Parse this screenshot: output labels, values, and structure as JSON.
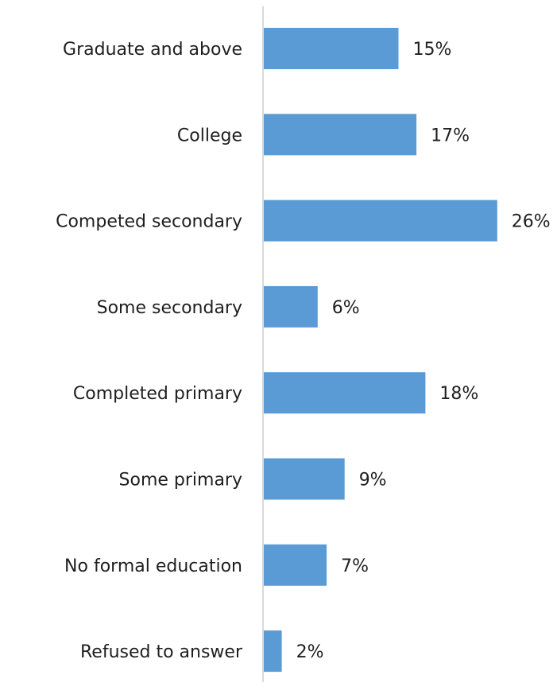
{
  "chart_data": {
    "type": "bar",
    "orientation": "horizontal",
    "title": "",
    "xlabel": "",
    "ylabel": "",
    "categories": [
      "Graduate and above",
      "College",
      "Competed secondary",
      "Some secondary",
      "Completed primary",
      "Some primary",
      "No formal education",
      "Refused to answer"
    ],
    "values": [
      15,
      17,
      26,
      6,
      18,
      9,
      7,
      2
    ],
    "value_labels": [
      "15%",
      "17%",
      "26%",
      "6%",
      "18%",
      "9%",
      "7%",
      "2%"
    ],
    "value_unit": "%",
    "xlim": [
      0,
      26
    ],
    "grid": false,
    "legend": "none",
    "colors": {
      "bar": "#5b9bd5",
      "axis": "#d9d9d9",
      "text": "#1f1f1f"
    }
  }
}
